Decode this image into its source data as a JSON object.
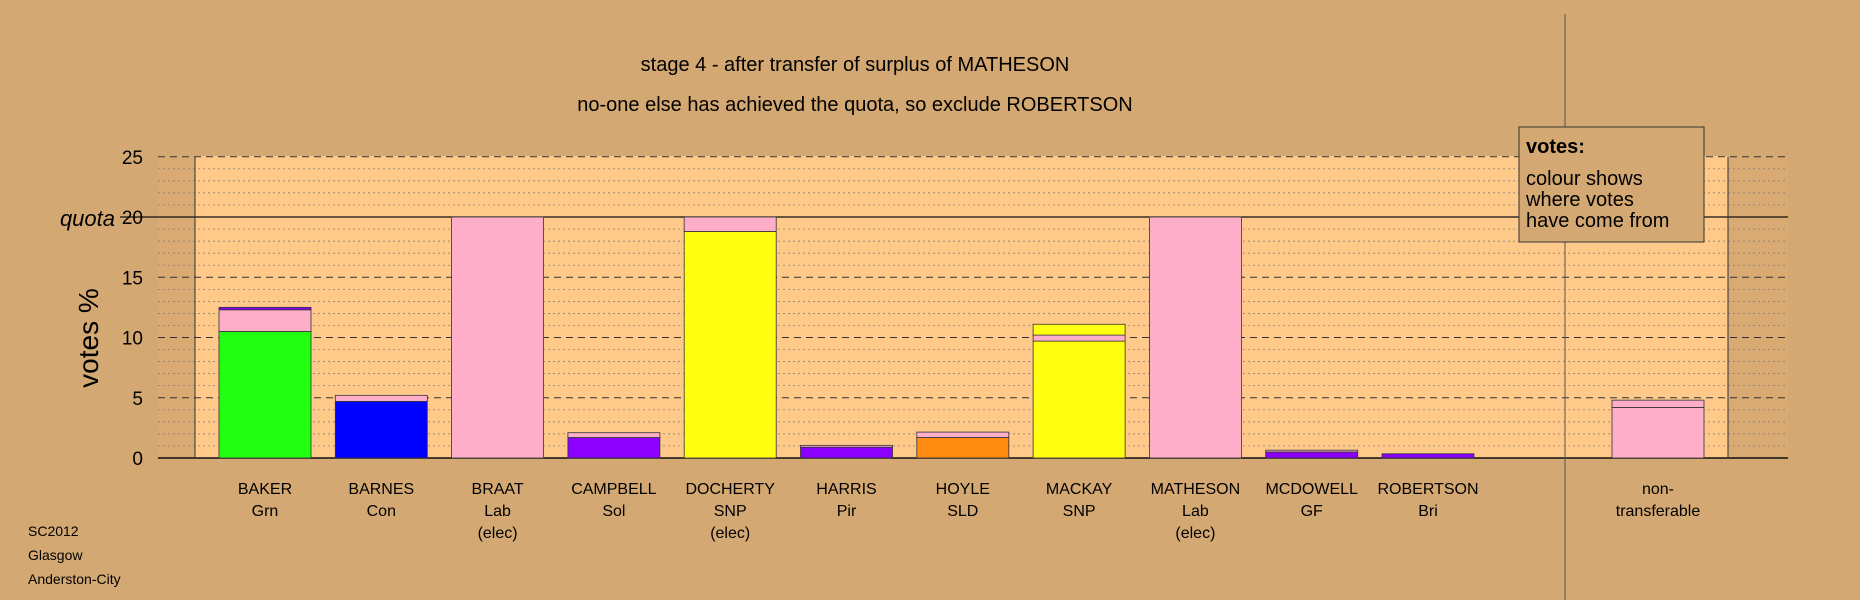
{
  "chart_data": {
    "type": "bar",
    "title": "stage 4 - after transfer of surplus of MATHESON",
    "subtitle": "no-one else has achieved the quota, so exclude ROBERTSON",
    "ylabel": "votes %",
    "ylim": [
      0,
      25
    ],
    "yticks": [
      "0",
      "5",
      "10",
      "15",
      "20",
      "25"
    ],
    "quota_label": "quota",
    "quota_value": 20,
    "grid": "dashed at 5, dotted at 1",
    "legend_placement": "top-right",
    "legend": {
      "title": "votes:",
      "lines": [
        "colour shows",
        "where votes",
        "have come from"
      ]
    },
    "candidates": [
      {
        "name": "BAKER",
        "party": "Grn",
        "note": "",
        "segments": [
          {
            "value": 10.5,
            "color": "#22ff11"
          },
          {
            "value": 1.8,
            "color": "#ffaec9"
          },
          {
            "value": 0.2,
            "color": "#8b00ff"
          }
        ]
      },
      {
        "name": "BARNES",
        "party": "Con",
        "note": "",
        "segments": [
          {
            "value": 4.7,
            "color": "#0000ff"
          },
          {
            "value": 0.5,
            "color": "#ffaec9"
          }
        ]
      },
      {
        "name": "BRAAT",
        "party": "Lab",
        "note": "(elec)",
        "segments": [
          {
            "value": 20,
            "color": "#ffaec9"
          }
        ]
      },
      {
        "name": "CAMPBELL",
        "party": "Sol",
        "note": "",
        "segments": [
          {
            "value": 1.7,
            "color": "#8b00ff"
          },
          {
            "value": 0.4,
            "color": "#ffaec9"
          }
        ]
      },
      {
        "name": "DOCHERTY",
        "party": "SNP",
        "note": "(elec)",
        "segments": [
          {
            "value": 18.8,
            "color": "#ffff11"
          },
          {
            "value": 1.2,
            "color": "#ffaec9"
          }
        ]
      },
      {
        "name": "HARRIS",
        "party": "Pir",
        "note": "",
        "segments": [
          {
            "value": 0.9,
            "color": "#8b00ff"
          },
          {
            "value": 0.15,
            "color": "#ffaec9"
          }
        ]
      },
      {
        "name": "HOYLE",
        "party": "SLD",
        "note": "",
        "segments": [
          {
            "value": 1.7,
            "color": "#ff8c11"
          },
          {
            "value": 0.45,
            "color": "#ffaec9"
          }
        ]
      },
      {
        "name": "MACKAY",
        "party": "SNP",
        "note": "",
        "segments": [
          {
            "value": 9.7,
            "color": "#ffff11"
          },
          {
            "value": 0.5,
            "color": "#ffaec9"
          },
          {
            "value": 0.9,
            "color": "#ffff11"
          }
        ]
      },
      {
        "name": "MATHESON",
        "party": "Lab",
        "note": "(elec)",
        "segments": [
          {
            "value": 20,
            "color": "#ffaec9"
          }
        ]
      },
      {
        "name": "MCDOWELL",
        "party": "GF",
        "note": "",
        "segments": [
          {
            "value": 0.5,
            "color": "#8b00ff"
          },
          {
            "value": 0.15,
            "color": "#ffaec9"
          }
        ]
      },
      {
        "name": "ROBERTSON",
        "party": "Bri",
        "note": "",
        "segments": [
          {
            "value": 0.35,
            "color": "#8b00ff"
          }
        ]
      }
    ],
    "nontransferable": {
      "line1": "non-",
      "line2": "transferable",
      "segments": [
        {
          "value": 4.2,
          "color": "#ffaec9"
        },
        {
          "value": 0.6,
          "color": "#ffaec9"
        }
      ]
    }
  },
  "meta": {
    "election": "SC2012",
    "council": "Glasgow",
    "ward": "Anderston-City"
  },
  "colors": {
    "background": "#d4a872",
    "plot_background": "#ffc98a"
  }
}
